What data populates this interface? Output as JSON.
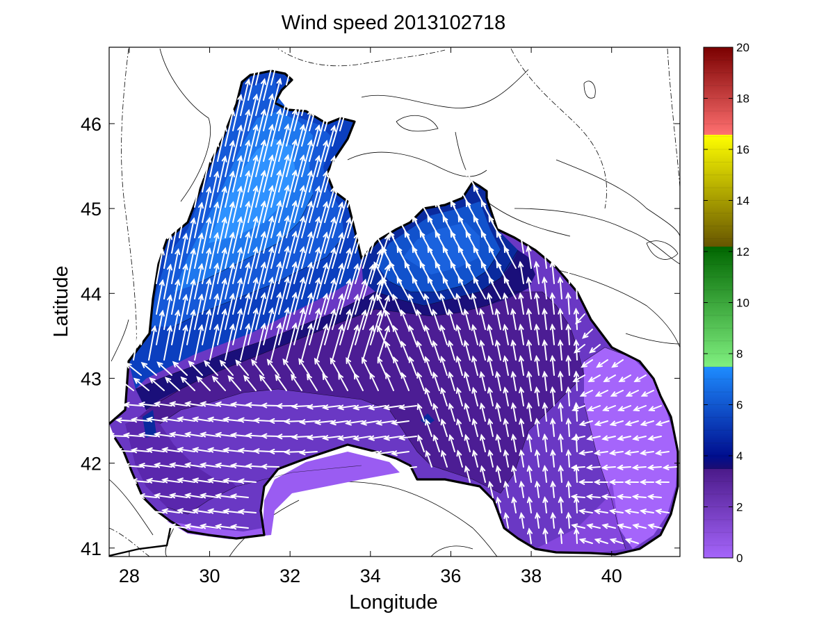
{
  "title": "Wind speed 2013102718",
  "xlabel": "Longitude",
  "ylabel": "Latitude",
  "x_ticks": [
    "28",
    "30",
    "32",
    "34",
    "36",
    "38",
    "40"
  ],
  "y_ticks": [
    "41",
    "42",
    "43",
    "44",
    "45",
    "46"
  ],
  "colorbar": {
    "ticks": [
      "0",
      "2",
      "4",
      "6",
      "8",
      "10",
      "12",
      "14",
      "16",
      "18",
      "20"
    ],
    "range": [
      0,
      20
    ],
    "bands": [
      {
        "from": 0,
        "to": 3.5,
        "colors": [
          "#a565fb",
          "#4b1a8a"
        ]
      },
      {
        "from": 3.5,
        "to": 4.0,
        "colors": [
          "#1c0c72",
          "#0a0a80"
        ]
      },
      {
        "from": 4.0,
        "to": 7.5,
        "colors": [
          "#000e8e",
          "#1e8cff"
        ]
      },
      {
        "from": 7.5,
        "to": 12.0,
        "colors": [
          "#80f080",
          "#006600"
        ]
      },
      {
        "from": 12.0,
        "to": 16.5,
        "colors": [
          "#665500",
          "#ffff00"
        ]
      },
      {
        "from": 16.5,
        "to": 20.0,
        "colors": [
          "#ff7070",
          "#7a0000"
        ]
      }
    ]
  },
  "chart_data": {
    "type": "map-contour-vector",
    "title": "Wind speed 2013102718",
    "xlabel": "Longitude",
    "ylabel": "Latitude",
    "xlim": [
      27.5,
      41.7
    ],
    "ylim": [
      40.9,
      46.9
    ],
    "units_colorbar": [
      0,
      20
    ],
    "speed_regions": [
      {
        "level": 6.5,
        "polygon": [
          [
            28.5,
            43.3
          ],
          [
            29.6,
            44.2
          ],
          [
            30.6,
            45.2
          ],
          [
            31.2,
            46.1
          ],
          [
            32.0,
            46.5
          ],
          [
            33.3,
            46.0
          ],
          [
            32.8,
            45.4
          ],
          [
            31.8,
            44.6
          ],
          [
            30.6,
            43.6
          ],
          [
            29.5,
            43.0
          ],
          [
            28.9,
            42.8
          ]
        ],
        "color": "#1a66e0"
      },
      {
        "level": 7.2,
        "polygon": [
          [
            29.2,
            43.8
          ],
          [
            30.0,
            44.8
          ],
          [
            30.8,
            45.6
          ],
          [
            31.5,
            46.0
          ],
          [
            32.5,
            45.8
          ],
          [
            32.2,
            45.2
          ],
          [
            31.4,
            44.4
          ],
          [
            30.5,
            43.8
          ]
        ],
        "color": "#2b8af2"
      },
      {
        "level": 6.0,
        "polygon": [
          [
            34.2,
            44.0
          ],
          [
            34.6,
            44.8
          ],
          [
            35.6,
            45.0
          ],
          [
            36.6,
            44.8
          ],
          [
            37.0,
            44.3
          ],
          [
            36.2,
            43.8
          ],
          [
            35.2,
            43.7
          ]
        ],
        "color": "#1452cc"
      },
      {
        "level": 4.5,
        "polygon": [
          [
            33.9,
            44.0
          ],
          [
            35.0,
            43.6
          ],
          [
            36.2,
            43.7
          ],
          [
            37.3,
            44.4
          ],
          [
            37.0,
            44.9
          ],
          [
            36.8,
            45.2
          ],
          [
            35.6,
            45.1
          ],
          [
            34.4,
            44.6
          ]
        ],
        "color": "#0a2fae"
      }
    ],
    "vectors_note": "wind vectors mostly directed from south to north-northeast over western basin; weaker westward flow near southern coast"
  }
}
